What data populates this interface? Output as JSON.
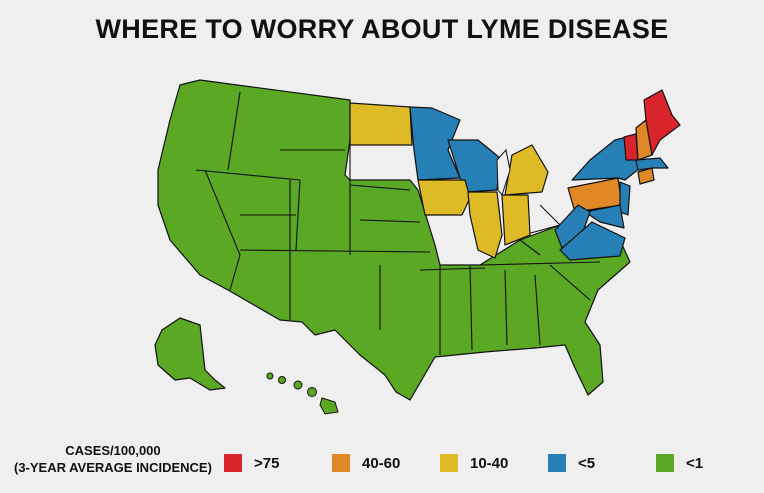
{
  "title": "WHERE TO WORRY ABOUT LYME DISEASE",
  "legend": {
    "caption_line1": "CASES/100,000",
    "caption_line2": "(3-YEAR AVERAGE INCIDENCE)",
    "items": [
      {
        "label": ">75",
        "color": "#d9242b"
      },
      {
        "label": "40-60",
        "color": "#e08826"
      },
      {
        "label": "10-40",
        "color": "#dfba27"
      },
      {
        "label": "<5",
        "color": "#2780b5"
      },
      {
        "label": "<1",
        "color": "#5aa823"
      }
    ]
  },
  "colors": {
    "very_high": "#d9242b",
    "high": "#e08826",
    "medium": "#dfba27",
    "low": "#2780b5",
    "minimal": "#5aa823",
    "background": "#efefef",
    "border": "#111111"
  },
  "states": {
    "maine": "very_high",
    "vermont": "very_high",
    "new_hampshire": "high",
    "pennsylvania": "high",
    "connecticut": "high",
    "rhode_island": "high",
    "north_dakota": "medium",
    "iowa": "medium",
    "illinois": "medium",
    "indiana": "medium",
    "michigan": "medium",
    "minnesota": "low",
    "wisconsin": "low",
    "new_york": "low",
    "new_jersey": "low",
    "massachusetts": "low",
    "virginia": "low",
    "west_virginia": "low",
    "maryland": "low",
    "delaware": "low",
    "other_states": "minimal"
  }
}
